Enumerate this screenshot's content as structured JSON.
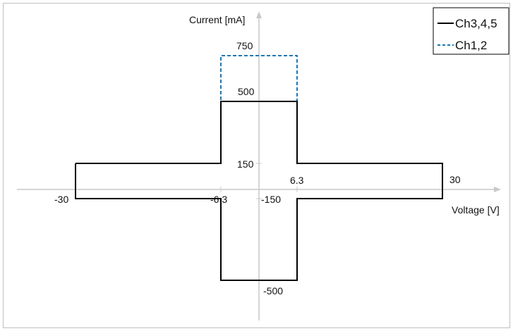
{
  "chart_data": {
    "type": "line",
    "xlabel": "Voltage [V]",
    "ylabel": "Current [mA]",
    "xlim": [
      -34,
      34
    ],
    "ylim": [
      -700,
      940
    ],
    "grid": false,
    "legend_position": "top-right",
    "x_tick_labels": [
      {
        "value": -30,
        "label": "-30"
      },
      {
        "value": -6.3,
        "label": "-6.3"
      },
      {
        "value": 6.3,
        "label": "6.3"
      },
      {
        "value": 30,
        "label": "30"
      }
    ],
    "y_tick_labels": [
      {
        "value": 750,
        "label": "750"
      },
      {
        "value": 500,
        "label": "500"
      },
      {
        "value": 150,
        "label": "150"
      },
      {
        "value": -150,
        "label": "-150"
      },
      {
        "value": -500,
        "label": "-500"
      }
    ],
    "series": [
      {
        "name": "Ch3,4,5",
        "color": "#000000",
        "style": "solid",
        "x": [
          -30,
          -6.3,
          -6.3,
          6.3,
          6.3,
          30,
          30,
          6.3,
          6.3,
          -6.3,
          -6.3,
          -30,
          -30
        ],
        "y": [
          150,
          150,
          500,
          500,
          150,
          150,
          -150,
          -150,
          -500,
          -500,
          -150,
          -150,
          150
        ]
      },
      {
        "name": "Ch1,2",
        "color": "#1f78b4",
        "style": "dashed",
        "x": [
          -30,
          -6.3,
          -6.3,
          6.3,
          6.3,
          30,
          30,
          6.3,
          6.3,
          -6.3,
          -6.3,
          -30,
          -30
        ],
        "y": [
          150,
          150,
          750,
          750,
          150,
          150,
          -150,
          -150,
          -500,
          -500,
          -150,
          -150,
          150
        ]
      }
    ]
  }
}
